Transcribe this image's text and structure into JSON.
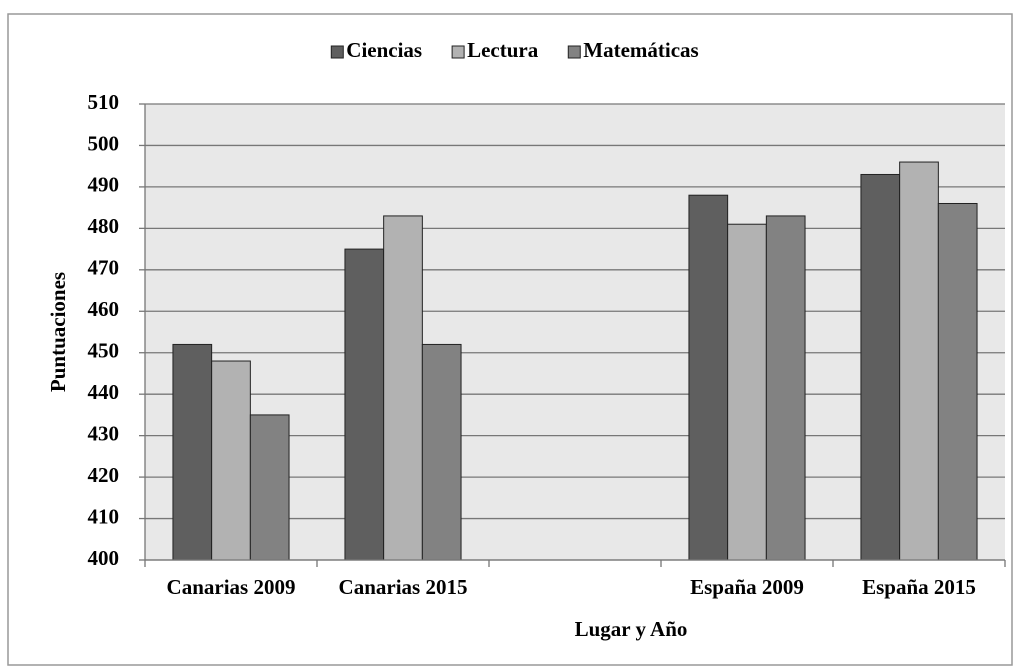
{
  "chart_data": {
    "type": "bar",
    "x_label": "Lugar y Año",
    "y_label": "Puntuaciones",
    "categories": [
      "Canarias 2009",
      "Canarias 2015",
      null,
      "España 2009",
      "España 2015"
    ],
    "series": [
      {
        "name": "Ciencias",
        "color": "#5f5f5f",
        "values": [
          452,
          475,
          null,
          488,
          493
        ]
      },
      {
        "name": "Lectura",
        "color": "#b2b2b2",
        "values": [
          448,
          483,
          null,
          481,
          496
        ]
      },
      {
        "name": "Matemáticas",
        "color": "#828282",
        "values": [
          435,
          452,
          null,
          483,
          486
        ]
      }
    ],
    "ylim": [
      400,
      510
    ],
    "yticks": [
      400,
      410,
      420,
      430,
      440,
      450,
      460,
      470,
      480,
      490,
      500,
      510
    ],
    "grid": true,
    "legend": "top",
    "plot_background": "#e8e8e8"
  }
}
